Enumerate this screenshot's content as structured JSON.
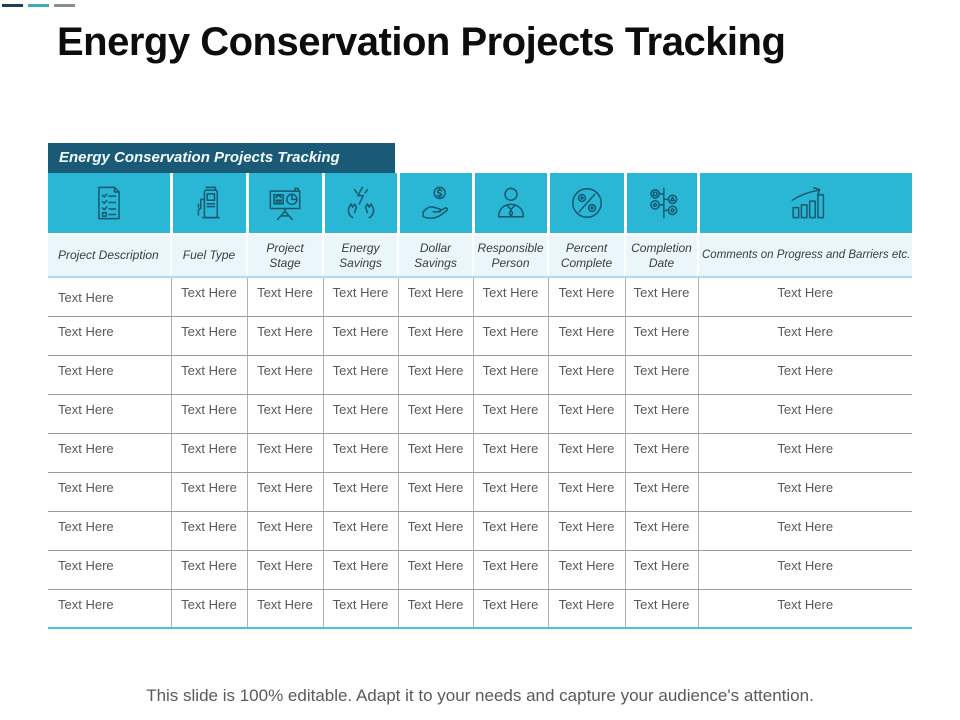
{
  "slide": {
    "title": "Energy Conservation Projects Tracking",
    "footer": "This slide is 100% editable. Adapt it to your needs and capture your audience's attention."
  },
  "table": {
    "band_title": "Energy Conservation Projects Tracking",
    "columns": [
      {
        "label": "Project Description",
        "icon": "checklist-document-icon"
      },
      {
        "label": "Fuel Type",
        "icon": "fuel-pump-icon"
      },
      {
        "label": "Project Stage",
        "icon": "presentation-board-icon"
      },
      {
        "label": "Energy Savings",
        "icon": "hands-energy-icon"
      },
      {
        "label": "Dollar Savings",
        "icon": "hand-dollar-icon"
      },
      {
        "label": "Responsible Person",
        "icon": "person-icon"
      },
      {
        "label": "Percent Complete",
        "icon": "percent-circle-icon"
      },
      {
        "label": "Completion Date",
        "icon": "milestones-icon"
      },
      {
        "label": "Comments on Progress and Barriers etc.",
        "icon": "bar-chart-growth-icon"
      }
    ],
    "rows": [
      [
        "Text Here",
        "Text Here",
        "Text Here",
        "Text Here",
        "Text Here",
        "Text Here",
        "Text Here",
        "Text Here",
        "Text Here"
      ],
      [
        "Text Here",
        "Text Here",
        "Text Here",
        "Text Here",
        "Text Here",
        "Text Here",
        "Text Here",
        "Text Here",
        "Text Here"
      ],
      [
        "Text Here",
        "Text Here",
        "Text Here",
        "Text Here",
        "Text Here",
        "Text Here",
        "Text Here",
        "Text Here",
        "Text Here"
      ],
      [
        "Text Here",
        "Text Here",
        "Text Here",
        "Text Here",
        "Text Here",
        "Text Here",
        "Text Here",
        "Text Here",
        "Text Here"
      ],
      [
        "Text Here",
        "Text Here",
        "Text Here",
        "Text Here",
        "Text Here",
        "Text Here",
        "Text Here",
        "Text Here",
        "Text Here"
      ],
      [
        "Text Here",
        "Text Here",
        "Text Here",
        "Text Here",
        "Text Here",
        "Text Here",
        "Text Here",
        "Text Here",
        "Text Here"
      ],
      [
        "Text Here",
        "Text Here",
        "Text Here",
        "Text Here",
        "Text Here",
        "Text Here",
        "Text Here",
        "Text Here",
        "Text Here"
      ],
      [
        "Text Here",
        "Text Here",
        "Text Here",
        "Text Here",
        "Text Here",
        "Text Here",
        "Text Here",
        "Text Here",
        "Text Here"
      ],
      [
        "Text Here",
        "Text Here",
        "Text Here",
        "Text Here",
        "Text Here",
        "Text Here",
        "Text Here",
        "Text Here",
        "Text Here"
      ]
    ]
  },
  "colors": {
    "band_dark_teal": "#1b5a76",
    "icon_band_cyan": "#2ab7d6",
    "header_light_cyan": "#eaf6fa",
    "bottom_border_teal": "#4ac2e0",
    "body_text_gray": "#595959",
    "title_black": "#0d0d0d"
  }
}
